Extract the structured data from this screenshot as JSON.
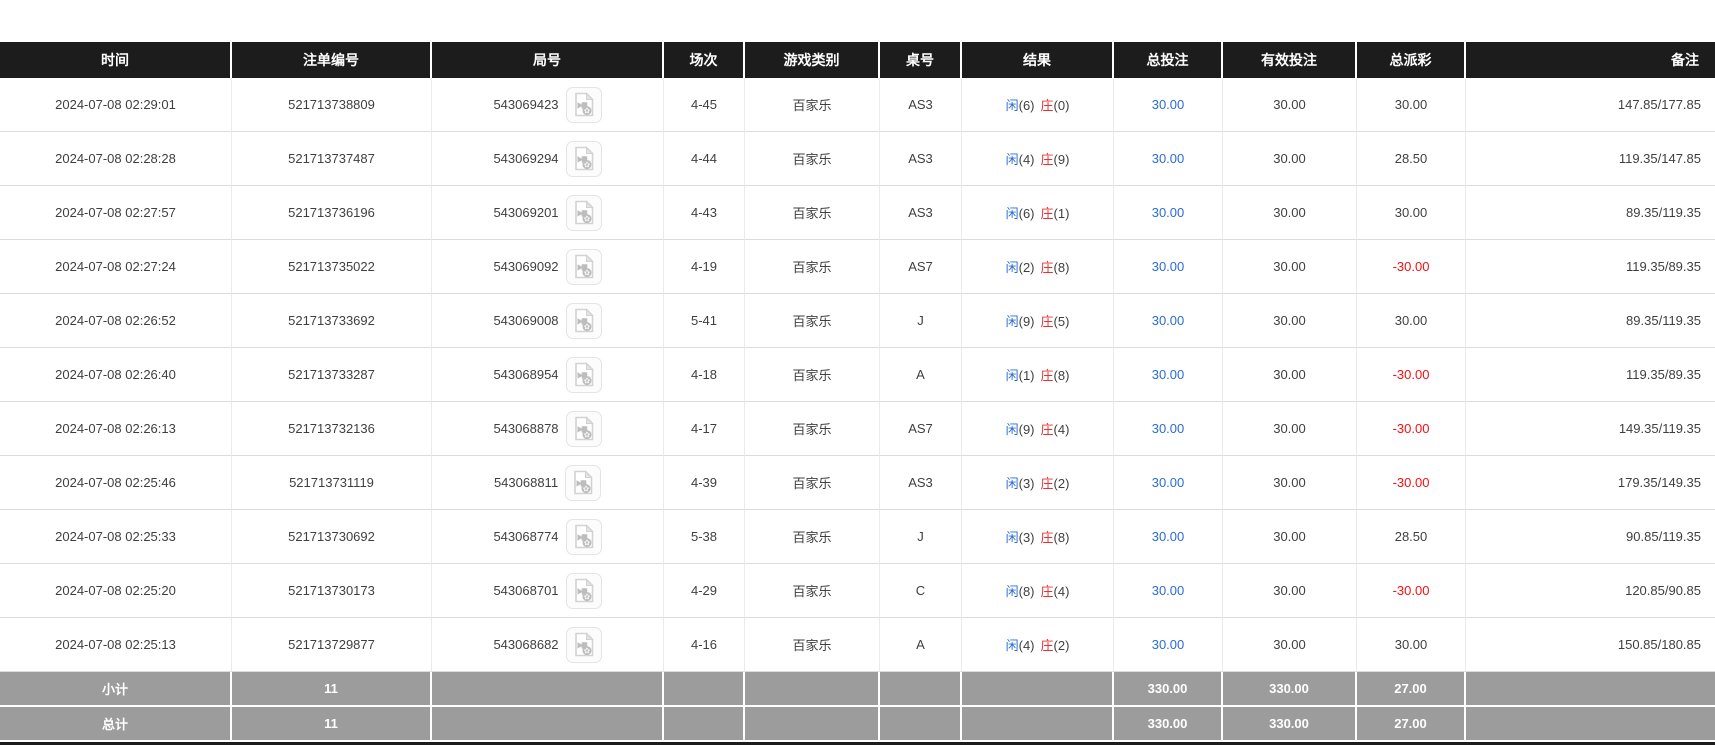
{
  "colors": {
    "header_bg": "#1c1c1c",
    "header_text": "#ffffff",
    "row_text": "#3f3f3f",
    "row_border": "#dcdcdc",
    "col_border": "#ebebeb",
    "link_blue": "#2a6cd5",
    "player_blue": "#2a6cd5",
    "banker_red": "#e63232",
    "negative_red": "#fb0f0f",
    "footer_bg": "#9c9c9c",
    "footer_text": "#ffffff"
  },
  "table": {
    "headers": [
      "时间",
      "注单编号",
      "局号",
      "场次",
      "游戏类别",
      "桌号",
      "结果",
      "总投注",
      "有效投注",
      "总派彩",
      "备注"
    ],
    "result_labels": {
      "player": "闲",
      "banker": "庄"
    },
    "icons": {
      "video_icon": "video-file-icon"
    },
    "rows": [
      {
        "time": "2024-07-08 02:29:01",
        "bet_id": "521713738809",
        "round_id": "543069423",
        "session": "4-45",
        "game_type": "百家乐",
        "table_no": "AS3",
        "player_score": "(6)",
        "banker_score": "(0)",
        "total_bet": "30.00",
        "valid_bet": "30.00",
        "total_payout": "30.00",
        "remark": "147.85/177.85"
      },
      {
        "time": "2024-07-08 02:28:28",
        "bet_id": "521713737487",
        "round_id": "543069294",
        "session": "4-44",
        "game_type": "百家乐",
        "table_no": "AS3",
        "player_score": "(4)",
        "banker_score": "(9)",
        "total_bet": "30.00",
        "valid_bet": "30.00",
        "total_payout": "28.50",
        "remark": "119.35/147.85"
      },
      {
        "time": "2024-07-08 02:27:57",
        "bet_id": "521713736196",
        "round_id": "543069201",
        "session": "4-43",
        "game_type": "百家乐",
        "table_no": "AS3",
        "player_score": "(6)",
        "banker_score": "(1)",
        "total_bet": "30.00",
        "valid_bet": "30.00",
        "total_payout": "30.00",
        "remark": "89.35/119.35"
      },
      {
        "time": "2024-07-08 02:27:24",
        "bet_id": "521713735022",
        "round_id": "543069092",
        "session": "4-19",
        "game_type": "百家乐",
        "table_no": "AS7",
        "player_score": "(2)",
        "banker_score": "(8)",
        "total_bet": "30.00",
        "valid_bet": "30.00",
        "total_payout": "-30.00",
        "remark": "119.35/89.35"
      },
      {
        "time": "2024-07-08 02:26:52",
        "bet_id": "521713733692",
        "round_id": "543069008",
        "session": "5-41",
        "game_type": "百家乐",
        "table_no": "J",
        "player_score": "(9)",
        "banker_score": "(5)",
        "total_bet": "30.00",
        "valid_bet": "30.00",
        "total_payout": "30.00",
        "remark": "89.35/119.35"
      },
      {
        "time": "2024-07-08 02:26:40",
        "bet_id": "521713733287",
        "round_id": "543068954",
        "session": "4-18",
        "game_type": "百家乐",
        "table_no": "A",
        "player_score": "(1)",
        "banker_score": "(8)",
        "total_bet": "30.00",
        "valid_bet": "30.00",
        "total_payout": "-30.00",
        "remark": "119.35/89.35"
      },
      {
        "time": "2024-07-08 02:26:13",
        "bet_id": "521713732136",
        "round_id": "543068878",
        "session": "4-17",
        "game_type": "百家乐",
        "table_no": "AS7",
        "player_score": "(9)",
        "banker_score": "(4)",
        "total_bet": "30.00",
        "valid_bet": "30.00",
        "total_payout": "-30.00",
        "remark": "149.35/119.35"
      },
      {
        "time": "2024-07-08 02:25:46",
        "bet_id": "521713731119",
        "round_id": "543068811",
        "session": "4-39",
        "game_type": "百家乐",
        "table_no": "AS3",
        "player_score": "(3)",
        "banker_score": "(2)",
        "total_bet": "30.00",
        "valid_bet": "30.00",
        "total_payout": "-30.00",
        "remark": "179.35/149.35"
      },
      {
        "time": "2024-07-08 02:25:33",
        "bet_id": "521713730692",
        "round_id": "543068774",
        "session": "5-38",
        "game_type": "百家乐",
        "table_no": "J",
        "player_score": "(3)",
        "banker_score": "(8)",
        "total_bet": "30.00",
        "valid_bet": "30.00",
        "total_payout": "28.50",
        "remark": "90.85/119.35"
      },
      {
        "time": "2024-07-08 02:25:20",
        "bet_id": "521713730173",
        "round_id": "543068701",
        "session": "4-29",
        "game_type": "百家乐",
        "table_no": "C",
        "player_score": "(8)",
        "banker_score": "(4)",
        "total_bet": "30.00",
        "valid_bet": "30.00",
        "total_payout": "-30.00",
        "remark": "120.85/90.85"
      },
      {
        "time": "2024-07-08 02:25:13",
        "bet_id": "521713729877",
        "round_id": "543068682",
        "session": "4-16",
        "game_type": "百家乐",
        "table_no": "A",
        "player_score": "(4)",
        "banker_score": "(2)",
        "total_bet": "30.00",
        "valid_bet": "30.00",
        "total_payout": "30.00",
        "remark": "150.85/180.85"
      }
    ],
    "footer_rows": [
      {
        "label": "小计",
        "count": "11",
        "total_bet": "330.00",
        "valid_bet": "330.00",
        "total_payout": "27.00"
      },
      {
        "label": "总计",
        "count": "11",
        "total_bet": "330.00",
        "valid_bet": "330.00",
        "total_payout": "27.00"
      }
    ]
  }
}
